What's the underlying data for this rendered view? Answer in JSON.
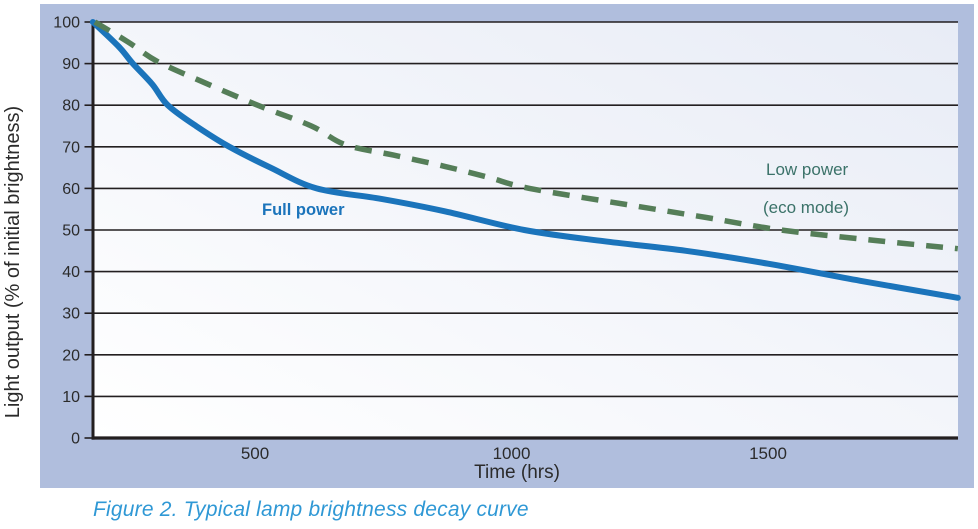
{
  "figure": {
    "caption": "Figure 2. Typical lamp brightness decay curve"
  },
  "chart_data": {
    "type": "line",
    "title": "",
    "xlabel": "Time (hrs)",
    "ylabel": "Light output (% of initial brightness)",
    "xlim": [
      184,
      1870
    ],
    "ylim": [
      0,
      100
    ],
    "x_tick_labels": [
      "500",
      "1000",
      "1500"
    ],
    "x_tick_values": [
      500,
      1000,
      1500
    ],
    "y_ticks": [
      0,
      10,
      20,
      30,
      40,
      50,
      60,
      70,
      80,
      90,
      100
    ],
    "grid": "horizontal-only",
    "legend": "inline-curve-labels",
    "series": [
      {
        "name": "Full power",
        "label": "Full power",
        "style": "solid",
        "color": "#1b74bb",
        "points": [
          [
            184,
            100
          ],
          [
            235,
            94
          ],
          [
            262,
            90
          ],
          [
            300,
            85
          ],
          [
            330,
            80
          ],
          [
            385,
            75
          ],
          [
            450,
            70
          ],
          [
            530,
            65
          ],
          [
            620,
            60
          ],
          [
            745,
            57.5
          ],
          [
            870,
            54.5
          ],
          [
            1025,
            50
          ],
          [
            1180,
            47.3
          ],
          [
            1340,
            45
          ],
          [
            1500,
            41.9
          ],
          [
            1680,
            37.8
          ],
          [
            1870,
            33.7
          ]
        ]
      },
      {
        "name": "Low power (eco mode)",
        "label_lines": [
          "Low power",
          "(eco mode)"
        ],
        "style": "dashed",
        "color": "#557e58",
        "label_color": "#3b7269",
        "points": [
          [
            188,
            100
          ],
          [
            255,
            95
          ],
          [
            310,
            90.5
          ],
          [
            400,
            85.5
          ],
          [
            505,
            80
          ],
          [
            610,
            75
          ],
          [
            676,
            70.5
          ],
          [
            770,
            68
          ],
          [
            870,
            65.3
          ],
          [
            957,
            62.6
          ],
          [
            1035,
            60
          ],
          [
            1230,
            56
          ],
          [
            1380,
            53
          ],
          [
            1525,
            50
          ],
          [
            1700,
            47.6
          ],
          [
            1870,
            45.5
          ]
        ]
      }
    ]
  },
  "colors": {
    "band_background": "#b0bedd",
    "plot_gradient_start": "#e8ecf6",
    "plot_gradient_end": "#ffffff",
    "axis_and_grid": "#231f20",
    "tick_text": "#2b2b2b",
    "caption_text": "#2f98d5"
  }
}
